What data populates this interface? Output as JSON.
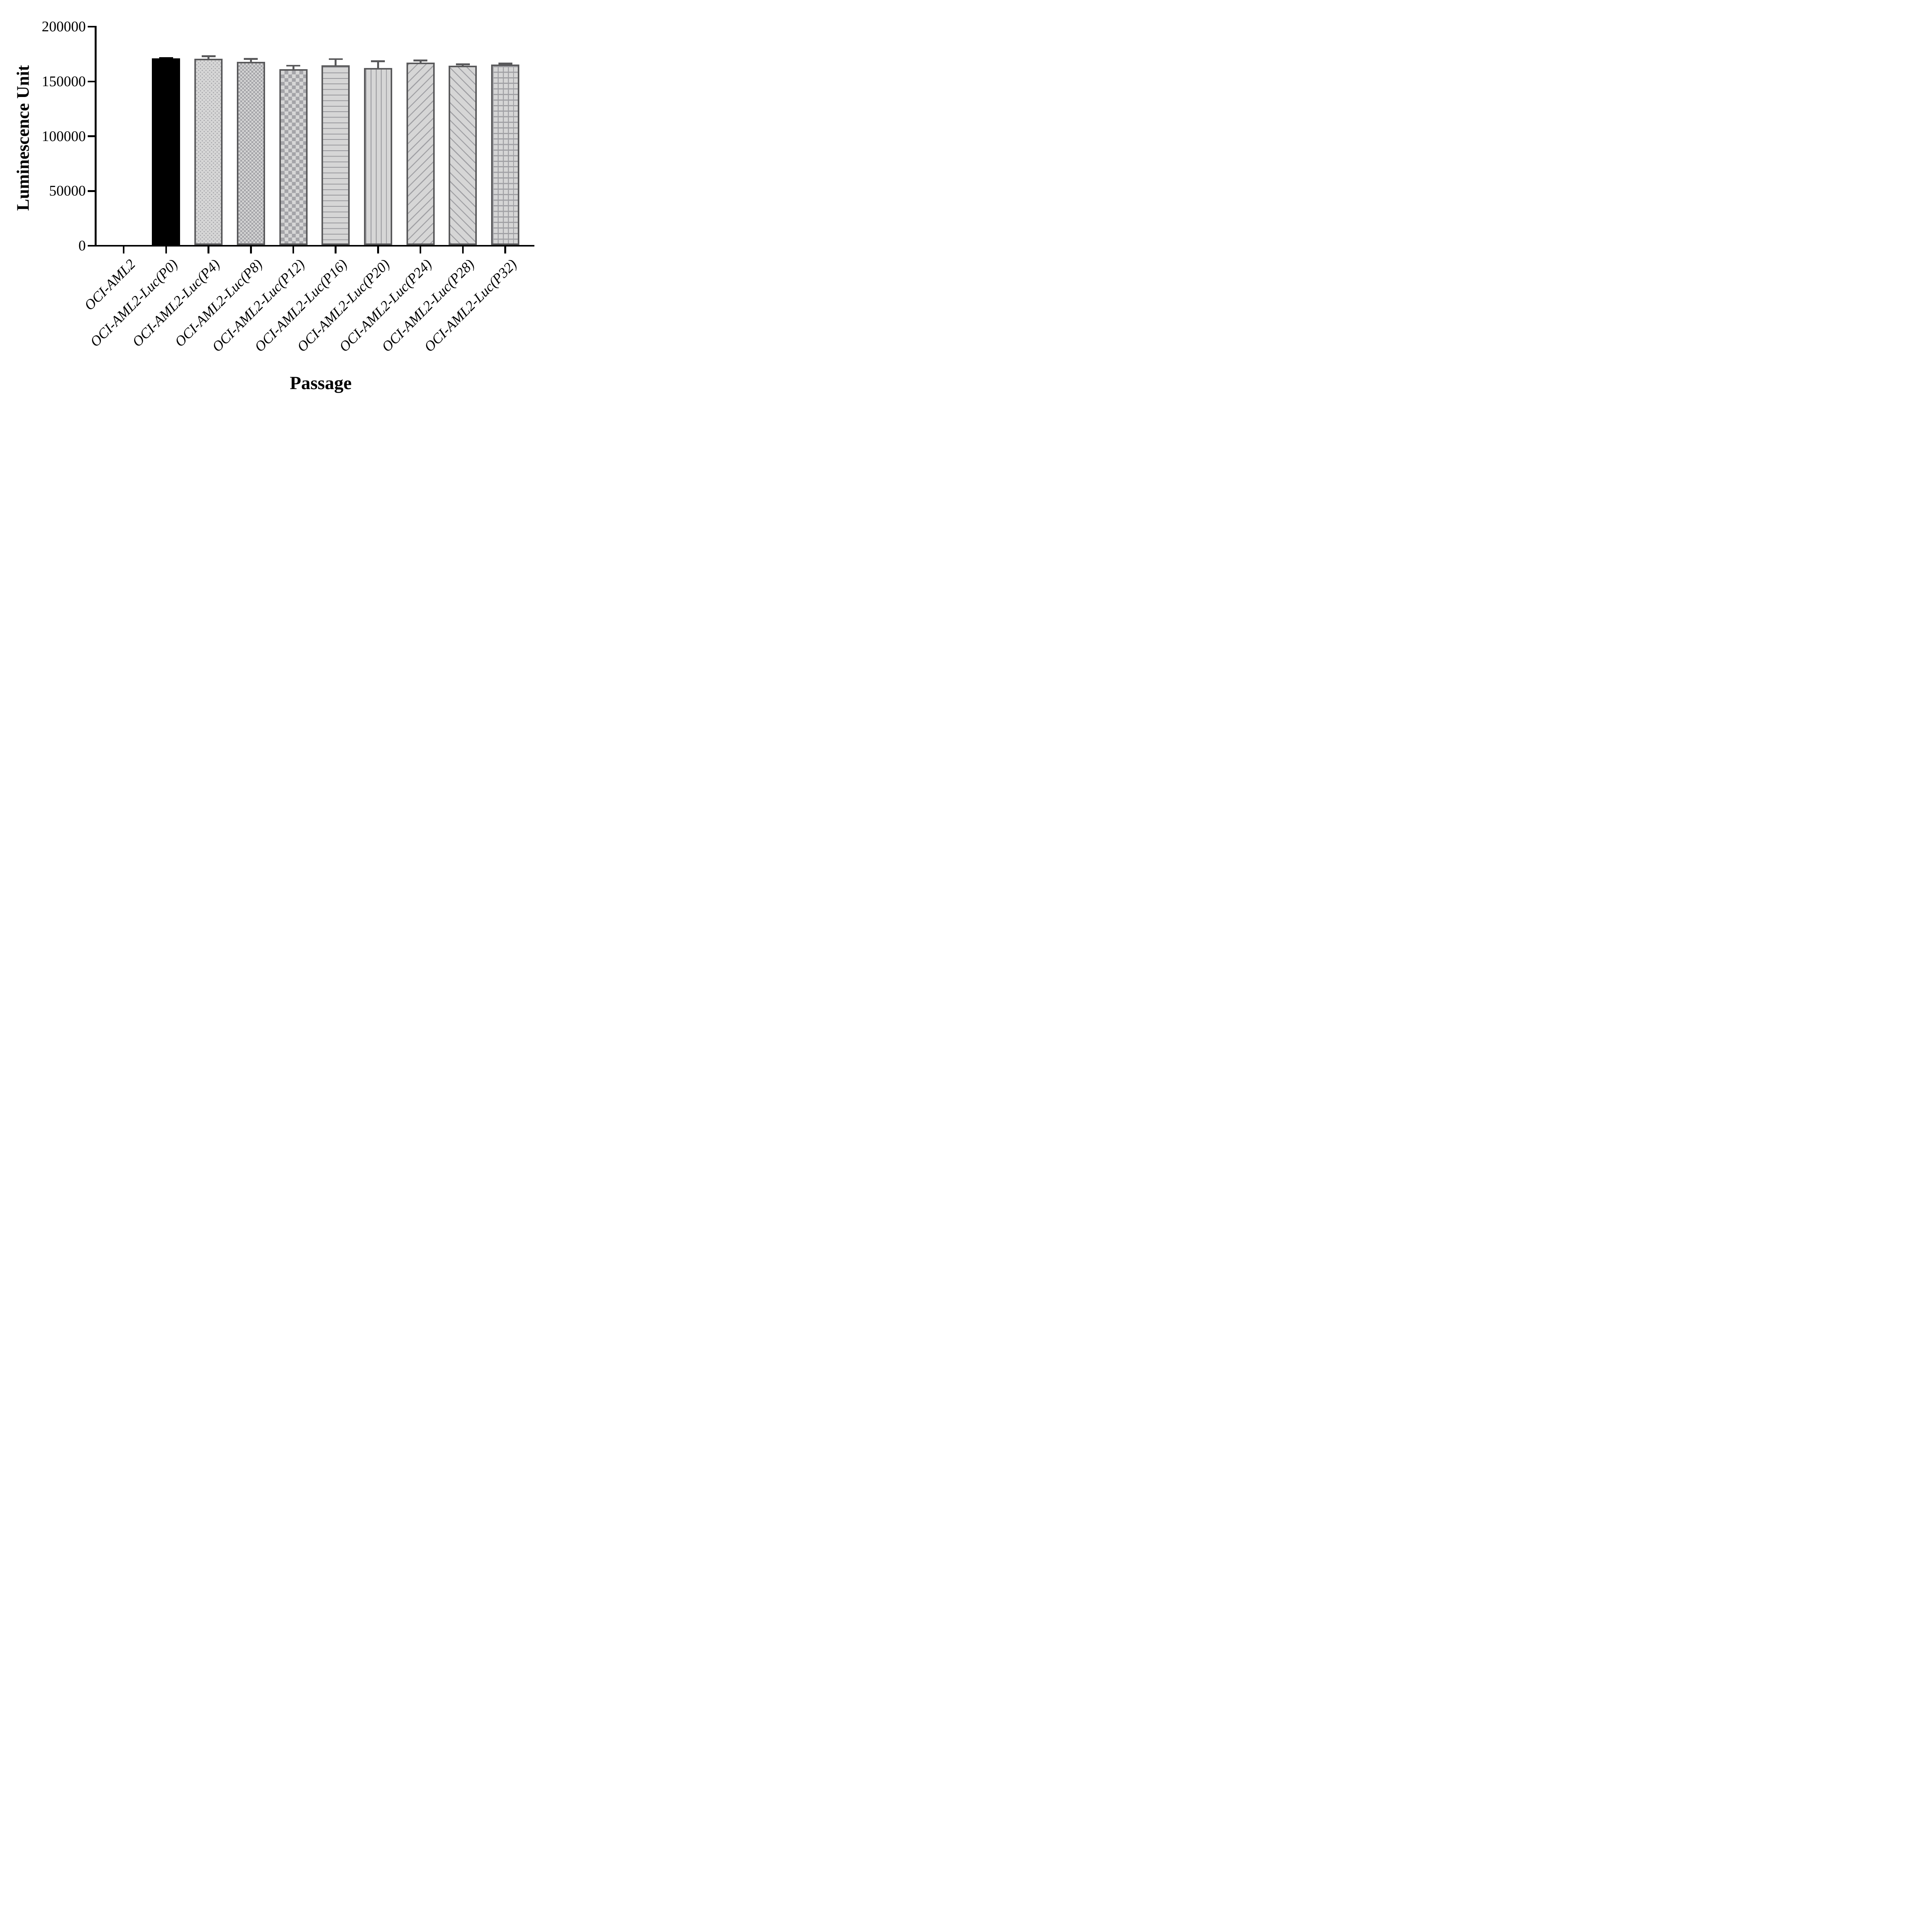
{
  "chart_data": {
    "type": "bar",
    "title": "",
    "xlabel": "Passage",
    "ylabel": "Luminescence Unit",
    "ylim": [
      0,
      200000
    ],
    "yticks": [
      0,
      50000,
      100000,
      150000,
      200000
    ],
    "ytick_labels": [
      "0",
      "50000",
      "100000",
      "150000",
      "200000"
    ],
    "grid": "off",
    "legend": "none",
    "categories": [
      "OCI-AML2",
      "OCI-AML2-Luc(P0)",
      "OCI-AML2-Luc(P4)",
      "OCI-AML2-Luc(P8)",
      "OCI-AML2-Luc(P12)",
      "OCI-AML2-Luc(P16)",
      "OCI-AML2-Luc(P20)",
      "OCI-AML2-Luc(P24)",
      "OCI-AML2-Luc(P28)",
      "OCI-AML2-Luc(P32)"
    ],
    "values": [
      0,
      171200,
      170800,
      167800,
      161300,
      164900,
      162200,
      167400,
      164600,
      165600
    ],
    "errors_sd_up": [
      0,
      900,
      3200,
      3700,
      4000,
      6400,
      7100,
      2700,
      1900,
      1500
    ],
    "bar_patterns": [
      "none",
      "solid-black",
      "dots",
      "checker-fine",
      "checker-coarse",
      "horizontal-lines",
      "vertical-lines",
      "diagonal-up",
      "diagonal-down",
      "grid"
    ],
    "colors": {
      "background": "#ffffff",
      "axis": "#000000",
      "solid_bar": "#000000",
      "bar_fill": "#d6d6d6",
      "pattern_stroke": "#a4a4a8",
      "bar_border": "#59595b",
      "error_bar_gray": "#59595b",
      "error_bar_black": "#000000"
    }
  }
}
